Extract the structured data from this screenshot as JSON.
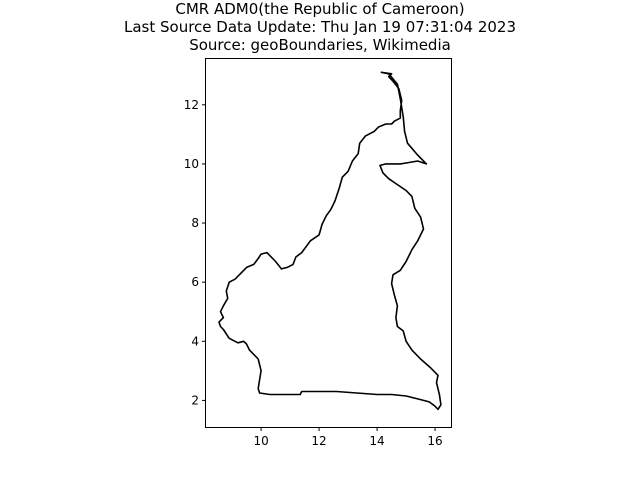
{
  "title_lines": [
    "CMR ADM0(the Republic of Cameroon)",
    "Last Source Data Update: Thu Jan 19 07:31:04 2023",
    "Source: geoBoundaries, Wikimedia"
  ],
  "chart_data": {
    "type": "map",
    "title": "CMR ADM0(the Republic of Cameroon)\nLast Source Data Update: Thu Jan 19 07:31:04 2023\nSource: geoBoundaries, Wikimedia",
    "xlim": [
      8.1,
      16.55
    ],
    "ylim": [
      1.1,
      13.55
    ],
    "x_ticks": [
      10,
      12,
      14,
      16
    ],
    "y_ticks": [
      2,
      4,
      6,
      8,
      10,
      12
    ],
    "x_tick_labels": [
      "10",
      "12",
      "14",
      "16"
    ],
    "y_tick_labels": [
      "2",
      "4",
      "6",
      "8",
      "10",
      "12"
    ],
    "boundary_color": "#000000",
    "boundary": [
      [
        14.15,
        13.1
      ],
      [
        14.5,
        13.05
      ],
      [
        14.4,
        12.95
      ],
      [
        14.55,
        12.8
      ],
      [
        14.75,
        12.55
      ],
      [
        14.85,
        12.15
      ],
      [
        14.8,
        11.8
      ],
      [
        14.8,
        11.55
      ],
      [
        14.6,
        11.45
      ],
      [
        14.5,
        11.35
      ],
      [
        14.3,
        11.35
      ],
      [
        14.05,
        11.25
      ],
      [
        13.9,
        11.1
      ],
      [
        13.6,
        10.95
      ],
      [
        13.4,
        10.7
      ],
      [
        13.35,
        10.35
      ],
      [
        13.15,
        10.1
      ],
      [
        13.0,
        9.75
      ],
      [
        12.8,
        9.55
      ],
      [
        12.7,
        9.2
      ],
      [
        12.55,
        8.75
      ],
      [
        12.4,
        8.45
      ],
      [
        12.25,
        8.25
      ],
      [
        12.1,
        7.95
      ],
      [
        12.0,
        7.6
      ],
      [
        11.7,
        7.4
      ],
      [
        11.4,
        7.0
      ],
      [
        11.2,
        6.85
      ],
      [
        11.1,
        6.6
      ],
      [
        10.9,
        6.5
      ],
      [
        10.7,
        6.45
      ],
      [
        10.5,
        6.7
      ],
      [
        10.3,
        6.9
      ],
      [
        10.2,
        7.0
      ],
      [
        10.0,
        6.95
      ],
      [
        9.9,
        6.8
      ],
      [
        9.75,
        6.6
      ],
      [
        9.5,
        6.5
      ],
      [
        9.3,
        6.3
      ],
      [
        9.1,
        6.1
      ],
      [
        8.9,
        6.0
      ],
      [
        8.8,
        5.7
      ],
      [
        8.85,
        5.45
      ],
      [
        8.7,
        5.2
      ],
      [
        8.6,
        5.0
      ],
      [
        8.7,
        4.8
      ],
      [
        8.55,
        4.65
      ],
      [
        8.6,
        4.5
      ],
      [
        8.7,
        4.4
      ],
      [
        8.9,
        4.1
      ],
      [
        9.2,
        3.95
      ],
      [
        9.4,
        4.0
      ],
      [
        9.5,
        3.9
      ],
      [
        9.6,
        3.7
      ],
      [
        9.9,
        3.4
      ],
      [
        10.0,
        3.0
      ],
      [
        9.95,
        2.7
      ],
      [
        9.9,
        2.4
      ],
      [
        9.95,
        2.25
      ],
      [
        10.3,
        2.2
      ],
      [
        11.0,
        2.2
      ],
      [
        11.35,
        2.2
      ],
      [
        11.4,
        2.3
      ],
      [
        12.0,
        2.3
      ],
      [
        12.6,
        2.3
      ],
      [
        13.3,
        2.25
      ],
      [
        14.0,
        2.2
      ],
      [
        14.5,
        2.2
      ],
      [
        15.0,
        2.15
      ],
      [
        15.4,
        2.05
      ],
      [
        15.8,
        1.95
      ],
      [
        16.0,
        1.8
      ],
      [
        16.1,
        1.7
      ],
      [
        16.2,
        1.85
      ],
      [
        16.15,
        2.2
      ],
      [
        16.05,
        2.6
      ],
      [
        16.1,
        2.85
      ],
      [
        15.85,
        3.1
      ],
      [
        15.5,
        3.4
      ],
      [
        15.2,
        3.7
      ],
      [
        15.0,
        4.0
      ],
      [
        14.9,
        4.35
      ],
      [
        14.7,
        4.5
      ],
      [
        14.65,
        4.8
      ],
      [
        14.7,
        5.2
      ],
      [
        14.6,
        5.55
      ],
      [
        14.5,
        5.95
      ],
      [
        14.55,
        6.25
      ],
      [
        14.8,
        6.4
      ],
      [
        15.0,
        6.7
      ],
      [
        15.2,
        7.1
      ],
      [
        15.4,
        7.4
      ],
      [
        15.6,
        7.8
      ],
      [
        15.5,
        8.2
      ],
      [
        15.3,
        8.5
      ],
      [
        15.2,
        8.9
      ],
      [
        15.0,
        9.1
      ],
      [
        14.7,
        9.3
      ],
      [
        14.4,
        9.5
      ],
      [
        14.2,
        9.7
      ],
      [
        14.1,
        9.95
      ],
      [
        14.3,
        10.0
      ],
      [
        14.8,
        10.0
      ],
      [
        15.1,
        10.05
      ],
      [
        15.4,
        10.1
      ],
      [
        15.7,
        10.0
      ],
      [
        15.4,
        10.3
      ],
      [
        15.05,
        10.7
      ],
      [
        14.95,
        11.1
      ],
      [
        14.9,
        11.6
      ],
      [
        14.8,
        12.2
      ],
      [
        14.7,
        12.7
      ],
      [
        14.4,
        13.05
      ],
      [
        14.15,
        13.1
      ]
    ]
  }
}
